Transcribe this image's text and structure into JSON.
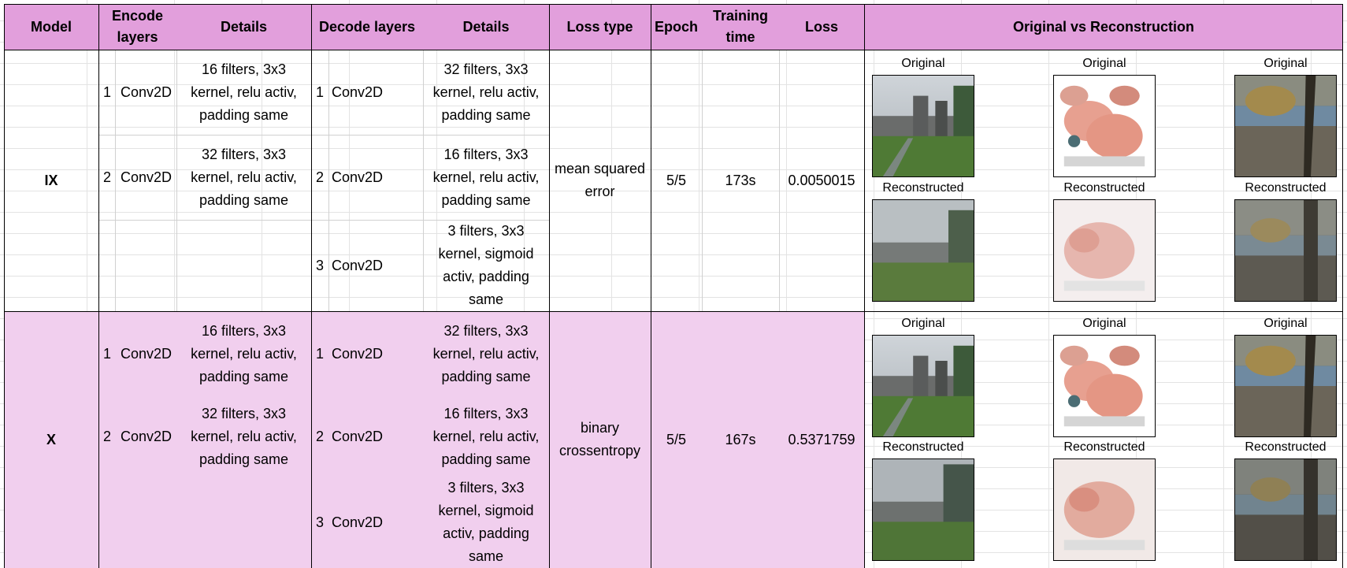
{
  "header": {
    "model": "Model",
    "encode_layers": "Encode layers",
    "details": "Details",
    "decode_layers": "Decode layers",
    "details2": "Details",
    "loss_type": "Loss type",
    "epoch": "Epoch",
    "training_time": "Training time",
    "loss": "Loss",
    "orig_vs_recon": "Original vs Reconstruction"
  },
  "rows": [
    {
      "model": "IX",
      "encode": [
        {
          "n": "1",
          "layer": "Conv2D",
          "details": "16 filters, 3x3 kernel, relu activ, padding same"
        },
        {
          "n": "2",
          "layer": "Conv2D",
          "details": "32 filters, 3x3 kernel, relu activ, padding same"
        }
      ],
      "decode": [
        {
          "n": "1",
          "layer": "Conv2D",
          "details": "32 filters, 3x3 kernel, relu activ, padding same"
        },
        {
          "n": "2",
          "layer": "Conv2D",
          "details": "16 filters, 3x3 kernel, relu activ, padding same"
        },
        {
          "n": "3",
          "layer": "Conv2D",
          "details": "3 filters, 3x3 kernel, sigmoid activ, padding same"
        }
      ],
      "loss_type": "mean squared error",
      "epoch": "5/5",
      "training_time": "173s",
      "loss": "0.0050015"
    },
    {
      "model": "X",
      "encode": [
        {
          "n": "1",
          "layer": "Conv2D",
          "details": "16 filters, 3x3 kernel, relu activ, padding same"
        },
        {
          "n": "2",
          "layer": "Conv2D",
          "details": "32 filters, 3x3 kernel, relu activ, padding same"
        }
      ],
      "decode": [
        {
          "n": "1",
          "layer": "Conv2D",
          "details": "32 filters, 3x3 kernel, relu activ, padding same"
        },
        {
          "n": "2",
          "layer": "Conv2D",
          "details": "16 filters, 3x3 kernel, relu activ, padding same"
        },
        {
          "n": "3",
          "layer": "Conv2D",
          "details": "3 filters, 3x3 kernel, sigmoid activ, padding same"
        }
      ],
      "loss_type": "binary crossentropy",
      "epoch": "5/5",
      "training_time": "167s",
      "loss": "0.5371759"
    }
  ],
  "image_labels": {
    "original": "Original",
    "reconstructed": "Reconstructed"
  },
  "images": [
    "castle-on-lawn",
    "pink-toy",
    "tree-by-lake"
  ],
  "colors": {
    "header_bg": "#e29fdc",
    "row_x_bg": "#f1cfee"
  }
}
